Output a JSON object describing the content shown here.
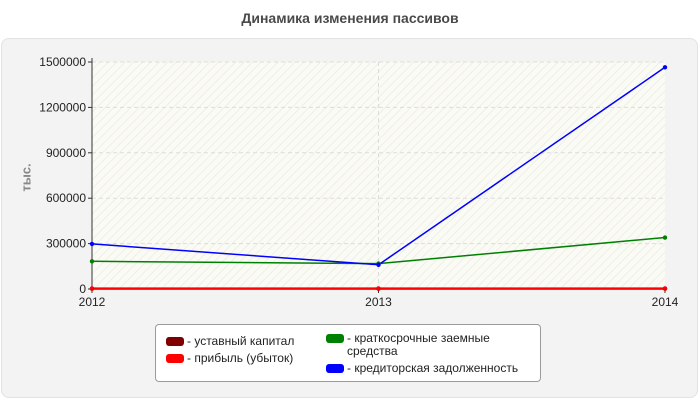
{
  "chart_data": {
    "type": "line",
    "title": "Динамика изменения пассивов",
    "ylabel": "тыс.",
    "xlabel": "",
    "categories": [
      "2012",
      "2013",
      "2014"
    ],
    "ylim": [
      0,
      1500000
    ],
    "yticks": [
      "0",
      "300000",
      "600000",
      "900000",
      "1200000",
      "1500000"
    ],
    "grid": true,
    "legend_placement": "bottom",
    "series": [
      {
        "name": "- уставный капитал",
        "color": "#800000",
        "values": [
          2000,
          2000,
          2000
        ]
      },
      {
        "name": "- прибыль (убыток)",
        "color": "#ff0000",
        "values": [
          4000,
          4000,
          4000
        ]
      },
      {
        "name": "- краткосрочные заемные средства",
        "color": "#008000",
        "values": [
          183000,
          168000,
          340000
        ]
      },
      {
        "name": "- кредиторская задолженность",
        "color": "#0000ff",
        "values": [
          298000,
          160000,
          1465000
        ]
      }
    ]
  }
}
